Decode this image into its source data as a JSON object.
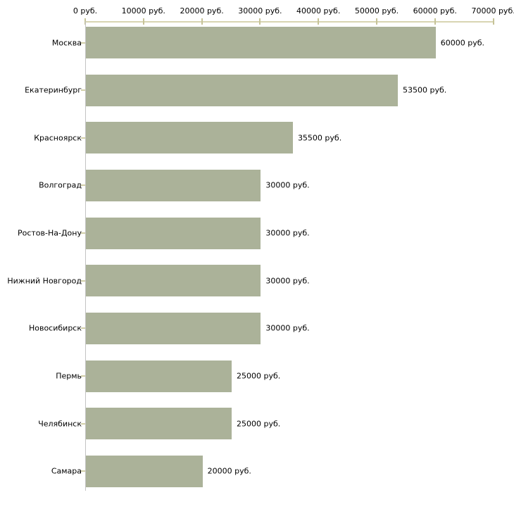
{
  "chart_data": {
    "type": "bar",
    "orientation": "horizontal",
    "title": "",
    "xlabel": "",
    "ylabel": "",
    "unit_suffix": " руб.",
    "categories": [
      "Москва",
      "Екатеринбург",
      "Красноярск",
      "Волгоград",
      "Ростов-На-Дону",
      "Нижний Новгород",
      "Новосибирск",
      "Пермь",
      "Челябинск",
      "Самара"
    ],
    "values": [
      60000,
      53500,
      35500,
      30000,
      30000,
      30000,
      30000,
      25000,
      25000,
      20000
    ],
    "value_labels": [
      "60000 руб.",
      "53500 руб.",
      "35500 руб.",
      "30000 руб.",
      "30000 руб.",
      "30000 руб.",
      "30000 руб.",
      "25000 руб.",
      "25000 руб.",
      "20000 руб."
    ],
    "x_axis": {
      "min": 0,
      "max": 70000,
      "tick_step": 10000,
      "tick_values": [
        0,
        10000,
        20000,
        30000,
        40000,
        50000,
        60000,
        70000
      ],
      "tick_labels": [
        "0 руб.",
        "10000 руб.",
        "20000 руб.",
        "30000 руб.",
        "40000 руб.",
        "50000 руб.",
        "60000 руб.",
        "70000 руб."
      ],
      "position": "top"
    },
    "legend": "none",
    "grid": "off",
    "colors": {
      "bar": "#abb299",
      "x_axis_line": "#d8d5b2",
      "x_tick": "#c6c398",
      "category_tick": "#d2cfa8",
      "y_axis_line": "#c3c3c3",
      "label_text": "#000000",
      "background": "#ffffff"
    }
  }
}
